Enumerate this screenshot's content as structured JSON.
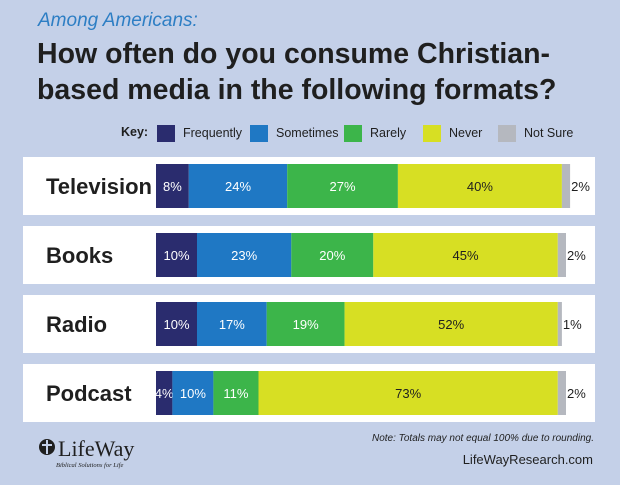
{
  "header": {
    "subtitle": "Among Americans:",
    "title": "How often do you consume Christian-based media in the following formats?"
  },
  "key": {
    "label": "Key:",
    "items": [
      {
        "name": "Frequently",
        "color": "#2a2c6e"
      },
      {
        "name": "Sometimes",
        "color": "#1f78c4"
      },
      {
        "name": "Rarely",
        "color": "#3cb54a"
      },
      {
        "name": "Never",
        "color": "#d7df23"
      },
      {
        "name": "Not Sure",
        "color": "#b5b8bf"
      }
    ]
  },
  "chart_data": {
    "type": "bar",
    "orientation": "horizontal",
    "stacked": true,
    "categories": [
      "Television",
      "Books",
      "Radio",
      "Podcast"
    ],
    "series": [
      {
        "name": "Frequently",
        "values": [
          8,
          10,
          10,
          4
        ],
        "color": "#2a2c6e"
      },
      {
        "name": "Sometimes",
        "values": [
          24,
          23,
          17,
          10
        ],
        "color": "#1f78c4"
      },
      {
        "name": "Rarely",
        "values": [
          27,
          20,
          19,
          11
        ],
        "color": "#3cb54a"
      },
      {
        "name": "Never",
        "values": [
          40,
          45,
          52,
          73
        ],
        "color": "#d7df23"
      },
      {
        "name": "Not Sure",
        "values": [
          2,
          2,
          1,
          2
        ],
        "color": "#b5b8bf"
      }
    ],
    "value_suffix": "%",
    "xlim": [
      0,
      100
    ],
    "grid": false,
    "legend": "top"
  },
  "footer": {
    "note": "Note: Totals may not equal 100% due to rounding.",
    "url": "LifeWayResearch.com"
  },
  "logo": {
    "name": "LifeWay",
    "tagline": "Biblical Solutions for Life"
  }
}
